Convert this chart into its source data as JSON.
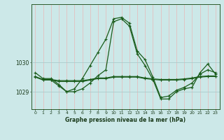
{
  "title": "Graphe pression niveau de la mer (hPa)",
  "background_color": "#cce8e8",
  "grid_color_v": "#e8b8b8",
  "grid_color_h": "#aacccc",
  "line_color": "#1a5c1a",
  "xlim": [
    -0.5,
    23.5
  ],
  "ylim": [
    1028.4,
    1032.0
  ],
  "yticks": [
    1029,
    1030
  ],
  "xticks": [
    0,
    1,
    2,
    3,
    4,
    5,
    6,
    7,
    8,
    9,
    10,
    11,
    12,
    13,
    14,
    15,
    16,
    17,
    18,
    19,
    20,
    21,
    22,
    23
  ],
  "line1_x": [
    0,
    1,
    2,
    3,
    4,
    5,
    6,
    7,
    8,
    9,
    10,
    11,
    12,
    13,
    14,
    15,
    16,
    17,
    18,
    19,
    20,
    21,
    22,
    23
  ],
  "line1_y": [
    1029.65,
    1029.45,
    1029.45,
    1029.25,
    1029.0,
    1029.1,
    1029.45,
    1029.9,
    1030.35,
    1030.8,
    1031.5,
    1031.55,
    1031.35,
    1030.4,
    1030.1,
    1029.5,
    1028.8,
    1028.85,
    1029.05,
    1029.15,
    1029.3,
    1029.6,
    1029.75,
    1029.65
  ],
  "line2_x": [
    0,
    1,
    2,
    3,
    4,
    5,
    6,
    7,
    8,
    9,
    10,
    11,
    12,
    13,
    14,
    15,
    16,
    17,
    18,
    19,
    20,
    21,
    22,
    23
  ],
  "line2_y": [
    1029.5,
    1029.4,
    1029.4,
    1029.35,
    1029.35,
    1029.35,
    1029.35,
    1029.4,
    1029.45,
    1029.45,
    1029.5,
    1029.5,
    1029.5,
    1029.5,
    1029.45,
    1029.42,
    1029.4,
    1029.4,
    1029.4,
    1029.42,
    1029.45,
    1029.5,
    1029.52,
    1029.52
  ],
  "line3_x": [
    0,
    1,
    2,
    3,
    4,
    5,
    6,
    7,
    8,
    9,
    10,
    11,
    12,
    13,
    14,
    15,
    16,
    17,
    18,
    19,
    20,
    21,
    22,
    23
  ],
  "line3_y": [
    1029.52,
    1029.42,
    1029.42,
    1029.38,
    1029.38,
    1029.38,
    1029.38,
    1029.42,
    1029.47,
    1029.47,
    1029.52,
    1029.52,
    1029.52,
    1029.52,
    1029.47,
    1029.44,
    1029.42,
    1029.42,
    1029.42,
    1029.44,
    1029.47,
    1029.52,
    1029.54,
    1029.54
  ],
  "line4_x": [
    2,
    3,
    4,
    5,
    6,
    7,
    8,
    9,
    10,
    11,
    12,
    13,
    14,
    15,
    16,
    17,
    18,
    19,
    20,
    21,
    22,
    23
  ],
  "line4_y": [
    1029.4,
    1029.2,
    1029.0,
    1029.0,
    1029.1,
    1029.3,
    1029.55,
    1029.75,
    1031.4,
    1031.5,
    1031.25,
    1030.3,
    1029.9,
    1029.42,
    1028.75,
    1028.75,
    1029.0,
    1029.1,
    1029.15,
    1029.65,
    1029.95,
    1029.6
  ]
}
